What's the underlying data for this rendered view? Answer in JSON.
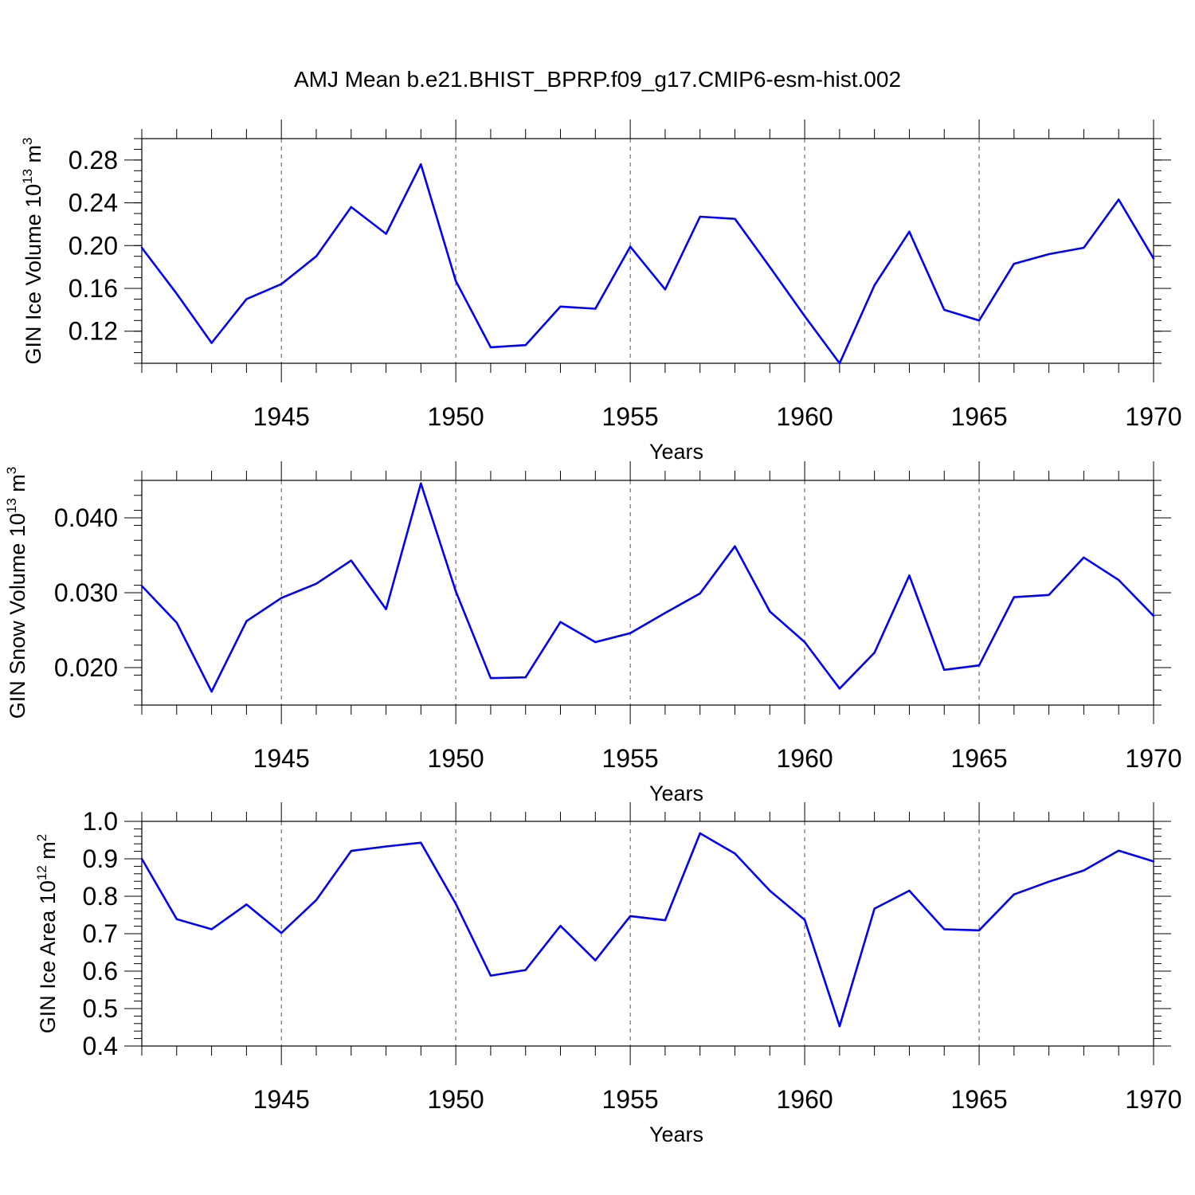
{
  "title": "AMJ Mean b.e21.BHIST_BPRP.f09_g17.CMIP6-esm-hist.002",
  "line_color": "#0000ff",
  "chart_data": [
    {
      "type": "line",
      "title": "AMJ Mean b.e21.BHIST_BPRP.f09_g17.CMIP6-esm-hist.002",
      "xlabel": "Years",
      "ylabel": "GIN Ice Volume 10",
      "ylabel_exp": "13",
      "ylabel_unit": " m",
      "ylabel_unit_exp": "3",
      "xlim": [
        1941,
        1970
      ],
      "ylim": [
        0.09,
        0.3
      ],
      "x_ticks": [
        "1945",
        "1950",
        "1955",
        "1960",
        "1965",
        "1970"
      ],
      "y_ticks": [
        "0.12",
        "0.16",
        "0.20",
        "0.24",
        "0.28"
      ],
      "grid": "dashed vertical lines at x major ticks",
      "series": [
        {
          "name": "GIN Ice Volume",
          "x": [
            1941,
            1942,
            1943,
            1944,
            1945,
            1946,
            1947,
            1948,
            1949,
            1950,
            1951,
            1952,
            1953,
            1954,
            1955,
            1956,
            1957,
            1958,
            1959,
            1960,
            1961,
            1962,
            1963,
            1964,
            1965,
            1966,
            1967,
            1968,
            1969,
            1970
          ],
          "values": [
            0.198,
            0.155,
            0.109,
            0.15,
            0.164,
            0.19,
            0.236,
            0.211,
            0.276,
            0.167,
            0.105,
            0.107,
            0.143,
            0.141,
            0.199,
            0.159,
            0.227,
            0.225,
            0.18,
            0.134,
            0.09,
            0.163,
            0.213,
            0.14,
            0.13,
            0.183,
            0.192,
            0.198,
            0.243,
            0.188
          ]
        }
      ]
    },
    {
      "type": "line",
      "xlabel": "Years",
      "ylabel": "GIN Snow Volume 10",
      "ylabel_exp": "13",
      "ylabel_unit": " m",
      "ylabel_unit_exp": "3",
      "xlim": [
        1941,
        1970
      ],
      "ylim": [
        0.015,
        0.045
      ],
      "x_ticks": [
        "1945",
        "1950",
        "1955",
        "1960",
        "1965",
        "1970"
      ],
      "y_ticks": [
        "0.020",
        "0.030",
        "0.040"
      ],
      "grid": "dashed vertical lines at x major ticks",
      "series": [
        {
          "name": "GIN Snow Volume",
          "x": [
            1941,
            1942,
            1943,
            1944,
            1945,
            1946,
            1947,
            1948,
            1949,
            1950,
            1951,
            1952,
            1953,
            1954,
            1955,
            1956,
            1957,
            1958,
            1959,
            1960,
            1961,
            1962,
            1963,
            1964,
            1965,
            1966,
            1967,
            1968,
            1969,
            1970
          ],
          "values": [
            0.0309,
            0.026,
            0.0168,
            0.0262,
            0.0293,
            0.0312,
            0.0343,
            0.0278,
            0.0446,
            0.0302,
            0.0186,
            0.0187,
            0.0261,
            0.0234,
            0.0246,
            0.0273,
            0.0299,
            0.0362,
            0.0275,
            0.0234,
            0.0172,
            0.022,
            0.0323,
            0.0197,
            0.0203,
            0.0294,
            0.0297,
            0.0347,
            0.0317,
            0.0269
          ]
        }
      ]
    },
    {
      "type": "line",
      "xlabel": "Years",
      "ylabel": "GIN Ice Area 10",
      "ylabel_exp": "12",
      "ylabel_unit": " m",
      "ylabel_unit_exp": "2",
      "xlim": [
        1941,
        1970
      ],
      "ylim": [
        0.4,
        1.0
      ],
      "x_ticks": [
        "1945",
        "1950",
        "1955",
        "1960",
        "1965",
        "1970"
      ],
      "y_ticks": [
        "0.4",
        "0.5",
        "0.6",
        "0.7",
        "0.8",
        "0.9",
        "1.0"
      ],
      "grid": "dashed vertical lines at x major ticks",
      "series": [
        {
          "name": "GIN Ice Area",
          "x": [
            1941,
            1942,
            1943,
            1944,
            1945,
            1946,
            1947,
            1948,
            1949,
            1950,
            1951,
            1952,
            1953,
            1954,
            1955,
            1956,
            1957,
            1958,
            1959,
            1960,
            1961,
            1962,
            1963,
            1964,
            1965,
            1966,
            1967,
            1968,
            1969,
            1970
          ],
          "values": [
            0.9,
            0.739,
            0.712,
            0.778,
            0.702,
            0.79,
            0.921,
            0.933,
            0.943,
            0.78,
            0.588,
            0.603,
            0.721,
            0.629,
            0.747,
            0.736,
            0.968,
            0.914,
            0.815,
            0.737,
            0.453,
            0.767,
            0.815,
            0.712,
            0.709,
            0.805,
            0.839,
            0.869,
            0.922,
            0.893
          ]
        }
      ]
    }
  ]
}
